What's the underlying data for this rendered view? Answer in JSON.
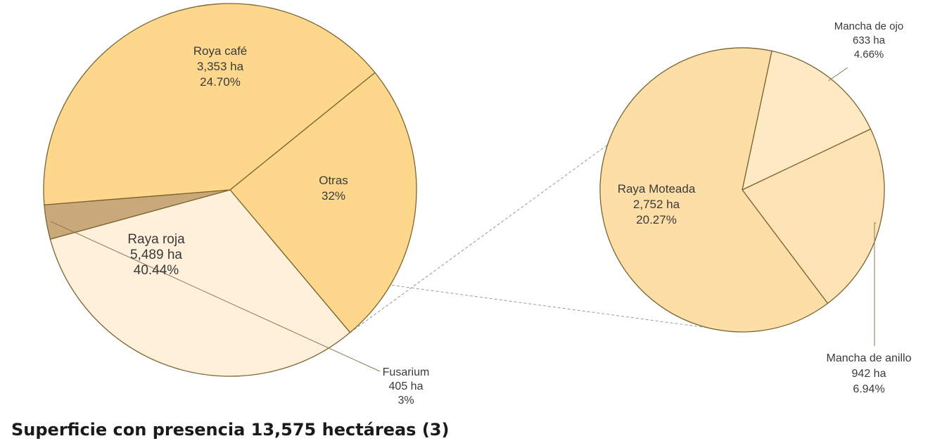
{
  "chart_data": [
    {
      "type": "pie",
      "slices": [
        {
          "name": "Roya café",
          "area_label": "3,353 ha",
          "pct_label": "24.70%",
          "value": 24.7,
          "color": "#FDD88C"
        },
        {
          "name": "Otras",
          "area_label": "",
          "pct_label": "32%",
          "value": 31.87,
          "color": "#FEF0DA"
        },
        {
          "name": "Fusarium",
          "area_label": "405 ha",
          "pct_label": "3%",
          "value": 2.98,
          "color": "#C9A87A"
        },
        {
          "name": "Raya roja",
          "area_label": "5,489 ha",
          "pct_label": "40.44%",
          "value": 40.44,
          "color": "#FDD88C"
        }
      ]
    },
    {
      "type": "pie",
      "title": "",
      "slices": [
        {
          "name": "Mancha de ojo",
          "area_label": "633 ha",
          "pct_label": "4.66%",
          "value": 4.66,
          "color": "#FEE9C5"
        },
        {
          "name": "Mancha de anillo",
          "area_label": "942 ha",
          "pct_label": "6.94%",
          "value": 6.94,
          "color": "#FEE3B6"
        },
        {
          "name": "Raya Moteada",
          "area_label": "2,752 ha",
          "pct_label": "20.27%",
          "value": 20.27,
          "color": "#FDDEA6"
        }
      ]
    }
  ],
  "caption": "Superficie con presencia 13,575 hectáreas (3)"
}
